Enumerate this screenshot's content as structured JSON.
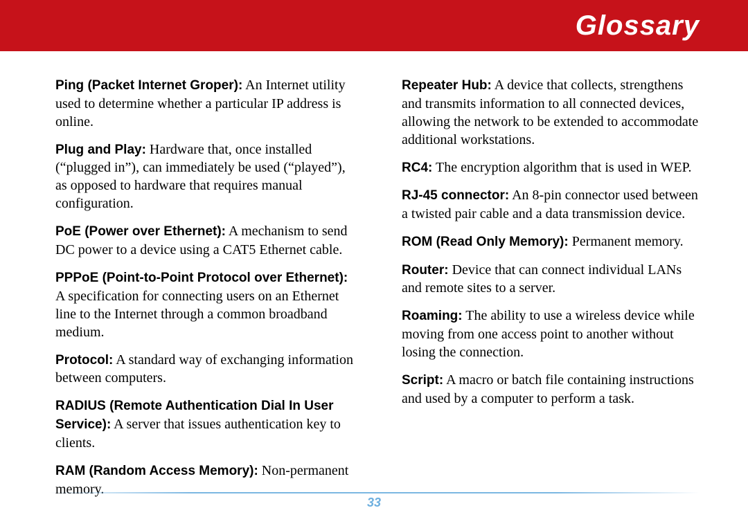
{
  "banner": {
    "title": "Glossary"
  },
  "page_number": "33",
  "colors": {
    "banner_bg": "#c6121a",
    "banner_text": "#ffffff",
    "rule": "#6dafdf",
    "pagenum": "#6dafdf"
  },
  "left_column": [
    {
      "term": "Ping (Packet Internet Groper):",
      "def": "  An Internet utility used to determine whether a particular IP address is online."
    },
    {
      "term": "Plug and Play:",
      "def": "  Hardware that, once installed (“plugged in”), can immediately be used (“played”), as opposed to hardware that requires manual configuration."
    },
    {
      "term": "PoE (Power over Ethernet):",
      "def": "  A mechanism to send DC power to a device using a CAT5 Ethernet cable."
    },
    {
      "term": "PPPoE (Point-to-Point Protocol over Ethernet):",
      "def": "  A specification for connecting users on an Ethernet line to the Internet through a common broadband medium."
    },
    {
      "term": "Protocol:",
      "def": "  A standard way of exchanging information between computers."
    },
    {
      "term": "RADIUS (Remote Authentication Dial In User Service):",
      "def": "  A server that issues authentication key to clients."
    },
    {
      "term": "RAM (Random Access Memory):",
      "def": "  Non-permanent memory."
    }
  ],
  "right_column": [
    {
      "term": "Repeater Hub:",
      "def": "  A device that collects, strengthens and transmits information to all connected devices, allowing the network to be extended to accommodate additional workstations."
    },
    {
      "term": "RC4:",
      "def": "  The encryption algorithm that is used in WEP."
    },
    {
      "term": "RJ-45 connector:",
      "def": "  An 8-pin connector used between a twisted pair cable and a data transmission device."
    },
    {
      "term": "ROM (Read Only Memory):",
      "def": "  Permanent memory."
    },
    {
      "term": "Router:",
      "def": "  Device that can connect individual LANs and remote sites to a server."
    },
    {
      "term": "Roaming:",
      "def": "  The ability to use a wireless device while moving from one access point to another without losing the connection."
    },
    {
      "term": "Script:",
      "def": "  A macro or batch file containing instructions and used by a computer to perform a task."
    }
  ]
}
